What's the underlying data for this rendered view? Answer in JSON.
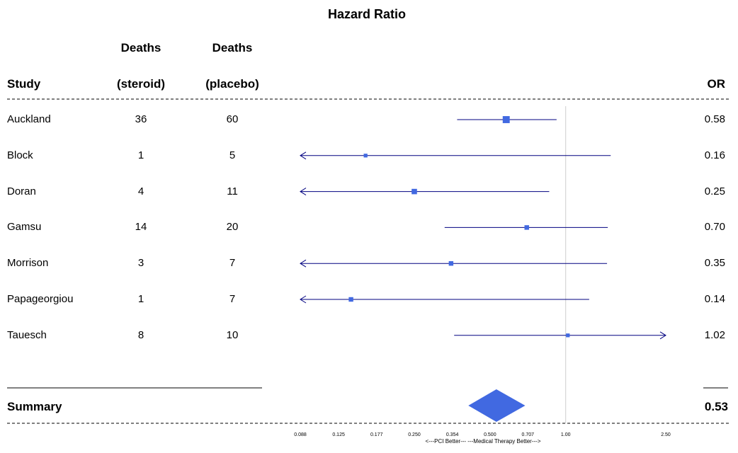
{
  "chart_data": {
    "type": "forest",
    "title": "Hazard Ratio",
    "columns": {
      "study": "Study",
      "deaths_steroid": [
        "Deaths",
        "(steroid)"
      ],
      "deaths_placebo": [
        "Deaths",
        "(placebo)"
      ],
      "or": "OR"
    },
    "rows": [
      {
        "study": "Auckland",
        "deaths_steroid": "36",
        "deaths_placebo": "60",
        "or": 0.58,
        "or_label": "0.58",
        "ci": [
          0.37,
          0.92
        ],
        "ci_arrow_low": false,
        "ci_arrow_high": false,
        "weight": 3
      },
      {
        "study": "Block",
        "deaths_steroid": "1",
        "deaths_placebo": "5",
        "or": 0.16,
        "or_label": "0.16",
        "ci": [
          0.088,
          1.51
        ],
        "ci_arrow_low": true,
        "ci_arrow_high": false,
        "weight": 1
      },
      {
        "study": "Doran",
        "deaths_steroid": "4",
        "deaths_placebo": "11",
        "or": 0.25,
        "or_label": "0.25",
        "ci": [
          0.088,
          0.86
        ],
        "ci_arrow_low": true,
        "ci_arrow_high": false,
        "weight": 2
      },
      {
        "study": "Gamsu",
        "deaths_steroid": "14",
        "deaths_placebo": "20",
        "or": 0.7,
        "or_label": "0.70",
        "ci": [
          0.33,
          1.47
        ],
        "ci_arrow_low": false,
        "ci_arrow_high": false,
        "weight": 1.5
      },
      {
        "study": "Morrison",
        "deaths_steroid": "3",
        "deaths_placebo": "7",
        "or": 0.35,
        "or_label": "0.35",
        "ci": [
          0.088,
          1.46
        ],
        "ci_arrow_low": true,
        "ci_arrow_high": false,
        "weight": 1.5
      },
      {
        "study": "Papageorgiou",
        "deaths_steroid": "1",
        "deaths_placebo": "7",
        "or": 0.14,
        "or_label": "0.14",
        "ci": [
          0.088,
          1.24
        ],
        "ci_arrow_low": true,
        "ci_arrow_high": false,
        "weight": 1.5
      },
      {
        "study": "Tauesch",
        "deaths_steroid": "8",
        "deaths_placebo": "10",
        "or": 1.02,
        "or_label": "1.02",
        "ci": [
          0.36,
          2.5
        ],
        "ci_arrow_low": false,
        "ci_arrow_high": true,
        "weight": 1
      }
    ],
    "summary": {
      "label": "Summary",
      "or": 0.53,
      "or_label": "0.53",
      "ci": [
        0.41,
        0.69
      ]
    },
    "xaxis": {
      "scale": "log",
      "range": [
        0.088,
        2.5
      ],
      "ticks": [
        0.088,
        0.125,
        0.177,
        0.25,
        0.354,
        0.5,
        0.707,
        1.0,
        2.5
      ],
      "tick_labels": [
        "0.088",
        "0.125",
        "0.177",
        "0.250",
        "0.354",
        "0.500",
        "0.707",
        "1.00",
        "2.50"
      ],
      "caption": "<---PCI Better--- ---Medical Therapy Better--->",
      "reference_line": 1.0
    },
    "colors": {
      "box": "#4169e1",
      "ci_line": "#000080",
      "diamond": "#4169e1",
      "reference": "#cccccc"
    }
  }
}
